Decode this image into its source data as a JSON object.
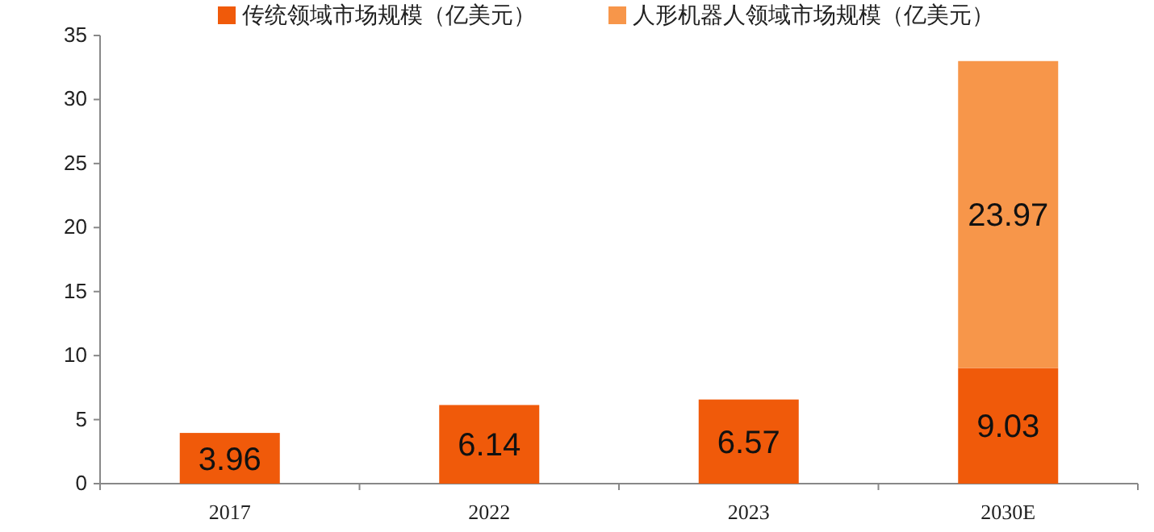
{
  "chart_data": {
    "type": "bar",
    "stacked": true,
    "categories": [
      "2017",
      "2022",
      "2023",
      "2030E"
    ],
    "series": [
      {
        "name": "传统领域市场规模（亿美元）",
        "color": "#f05a0a",
        "values": [
          3.96,
          6.14,
          6.57,
          9.03
        ]
      },
      {
        "name": "人形机器人领域市场规模（亿美元）",
        "color": "#f7964a",
        "values": [
          null,
          null,
          null,
          23.97
        ]
      }
    ],
    "ylim": [
      0,
      35
    ],
    "yticks": [
      0,
      5,
      10,
      15,
      20,
      25,
      30,
      35
    ],
    "data_labels": true,
    "legend": "top"
  }
}
